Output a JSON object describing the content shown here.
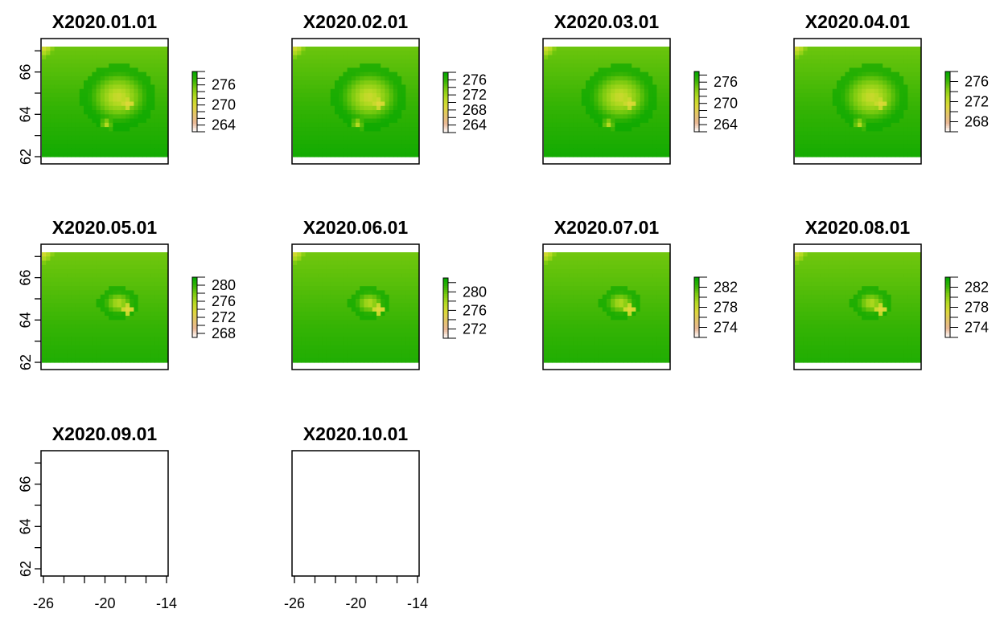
{
  "chart_data": [
    {
      "type": "heatmap",
      "title": "X2020.01.01",
      "legend_ticks": [
        "264",
        "270",
        "276"
      ],
      "legend_range": [
        262,
        280
      ],
      "has_data": true,
      "bright": false,
      "summer": false,
      "y_ticks": [
        "62",
        "64",
        "66"
      ],
      "x_ticks": []
    },
    {
      "type": "heatmap",
      "title": "X2020.02.01",
      "legend_ticks": [
        "264",
        "268",
        "272",
        "276"
      ],
      "legend_range": [
        262,
        278
      ],
      "has_data": true,
      "bright": false,
      "summer": false,
      "y_ticks": [],
      "x_ticks": []
    },
    {
      "type": "heatmap",
      "title": "X2020.03.01",
      "legend_ticks": [
        "264",
        "270",
        "276"
      ],
      "legend_range": [
        262,
        279
      ],
      "has_data": true,
      "bright": false,
      "summer": false,
      "y_ticks": [],
      "x_ticks": []
    },
    {
      "type": "heatmap",
      "title": "X2020.04.01",
      "legend_ticks": [
        "268",
        "272",
        "276"
      ],
      "legend_range": [
        266,
        278
      ],
      "has_data": true,
      "bright": true,
      "summer": false,
      "y_ticks": [],
      "x_ticks": []
    },
    {
      "type": "heatmap",
      "title": "X2020.05.01",
      "legend_ticks": [
        "268",
        "272",
        "276",
        "280"
      ],
      "legend_range": [
        267,
        282
      ],
      "has_data": true,
      "bright": true,
      "summer": true,
      "y_ticks": [
        "62",
        "64",
        "66"
      ],
      "x_ticks": []
    },
    {
      "type": "heatmap",
      "title": "X2020.06.01",
      "legend_ticks": [
        "272",
        "276",
        "280"
      ],
      "legend_range": [
        270,
        283
      ],
      "has_data": true,
      "bright": true,
      "summer": true,
      "y_ticks": [],
      "x_ticks": []
    },
    {
      "type": "heatmap",
      "title": "X2020.07.01",
      "legend_ticks": [
        "274",
        "278",
        "282"
      ],
      "legend_range": [
        272,
        284
      ],
      "has_data": true,
      "bright": true,
      "summer": true,
      "y_ticks": [],
      "x_ticks": []
    },
    {
      "type": "heatmap",
      "title": "X2020.08.01",
      "legend_ticks": [
        "274",
        "278",
        "282"
      ],
      "legend_range": [
        272,
        284
      ],
      "has_data": true,
      "bright": true,
      "summer": true,
      "y_ticks": [],
      "x_ticks": []
    },
    {
      "type": "heatmap",
      "title": "X2020.09.01",
      "legend_ticks": [],
      "has_data": false,
      "y_ticks": [
        "62",
        "64",
        "66"
      ],
      "x_ticks": [
        "-26",
        "-20",
        "-14"
      ]
    },
    {
      "type": "heatmap",
      "title": "X2020.10.01",
      "legend_ticks": [],
      "has_data": false,
      "y_ticks": [],
      "x_ticks": [
        "-26",
        "-20",
        "-14"
      ]
    }
  ],
  "axes": {
    "x_range": [
      -27,
      -12
    ],
    "y_range": [
      61.5,
      67.5
    ],
    "x_minor_tick_step": 2,
    "y_minor_tick_step": 1
  },
  "colors": {
    "palette": [
      "#ffffff",
      "#f0c8a0",
      "#e8b090",
      "#e6d35a",
      "#d9dd2c",
      "#a6d81a",
      "#66c60a",
      "#00a600"
    ],
    "frame": "#000000"
  }
}
